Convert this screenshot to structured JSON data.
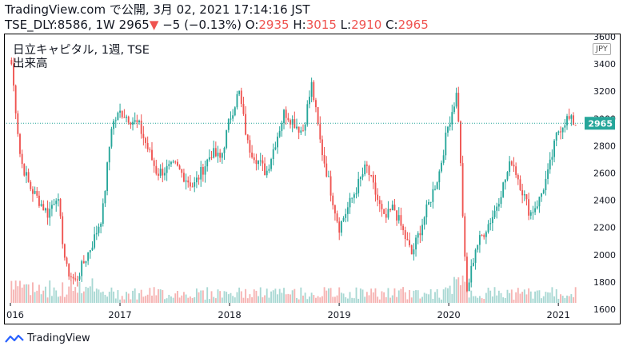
{
  "header": {
    "line1": "TradingView.com で公開, 3月 02, 2021 17:14:16 JST",
    "symbol": "TSE_DLY:8586, 1W",
    "last": "2965",
    "change": "−5 (−0.13%)",
    "o_label": "O:",
    "o_value": "2935",
    "h_label": "H:",
    "h_value": "3015",
    "l_label": "L:",
    "l_value": "2910",
    "c_label": "C:",
    "c_value": "2965"
  },
  "legend": {
    "title": "日立キャピタル, 1週, TSE",
    "volume": "出来高"
  },
  "currency": "JPY",
  "footer": {
    "brand": "TradingView"
  },
  "colors": {
    "up": "#26a69a",
    "down": "#ef5350",
    "last_label_bg": "#26a69a",
    "volume_up": "#a8d8d3",
    "volume_down": "#f6b3b2"
  },
  "chart_data": {
    "type": "candlestick",
    "ylim": [
      1500,
      3600
    ],
    "y_ticks": [
      1600,
      1800,
      2000,
      2200,
      2400,
      2600,
      2800,
      3000,
      3200,
      3400,
      3600
    ],
    "x_tick_labels": [
      "016",
      "2017",
      "2018",
      "2019",
      "2020",
      "2021"
    ],
    "last_price_label": "2965",
    "price_path": [
      [
        "2016-01",
        3400
      ],
      [
        "2016-02",
        2700
      ],
      [
        "2016-03",
        2500
      ],
      [
        "2016-05",
        2300
      ],
      [
        "2016-06",
        2450
      ],
      [
        "2016-07",
        1900
      ],
      [
        "2016-08",
        1800
      ],
      [
        "2016-10",
        2100
      ],
      [
        "2016-11",
        2300
      ],
      [
        "2016-12",
        2950
      ],
      [
        "2017-01",
        3050
      ],
      [
        "2017-03",
        2950
      ],
      [
        "2017-05",
        2600
      ],
      [
        "2017-07",
        2650
      ],
      [
        "2017-09",
        2500
      ],
      [
        "2017-11",
        2750
      ],
      [
        "2017-12",
        2700
      ],
      [
        "2018-01",
        3000
      ],
      [
        "2018-02",
        3200
      ],
      [
        "2018-03",
        2800
      ],
      [
        "2018-05",
        2600
      ],
      [
        "2018-07",
        3050
      ],
      [
        "2018-09",
        2900
      ],
      [
        "2018-10",
        3250
      ],
      [
        "2018-11",
        2800
      ],
      [
        "2019-01",
        2200
      ],
      [
        "2019-03",
        2500
      ],
      [
        "2019-04",
        2650
      ],
      [
        "2019-06",
        2250
      ],
      [
        "2019-07",
        2350
      ],
      [
        "2019-09",
        2000
      ],
      [
        "2019-11",
        2400
      ],
      [
        "2019-12",
        2600
      ],
      [
        "2020-01",
        2950
      ],
      [
        "2020-02",
        3200
      ],
      [
        "2020-03",
        1700
      ],
      [
        "2020-04",
        2050
      ],
      [
        "2020-06",
        2300
      ],
      [
        "2020-08",
        2700
      ],
      [
        "2020-09",
        2500
      ],
      [
        "2020-10",
        2300
      ],
      [
        "2020-11",
        2400
      ],
      [
        "2020-12",
        2600
      ],
      [
        "2021-01",
        2900
      ],
      [
        "2021-02",
        3000
      ],
      [
        "2021-03",
        2965
      ]
    ],
    "series": [
      {
        "name": "出来高",
        "type": "volume_bars"
      }
    ]
  }
}
